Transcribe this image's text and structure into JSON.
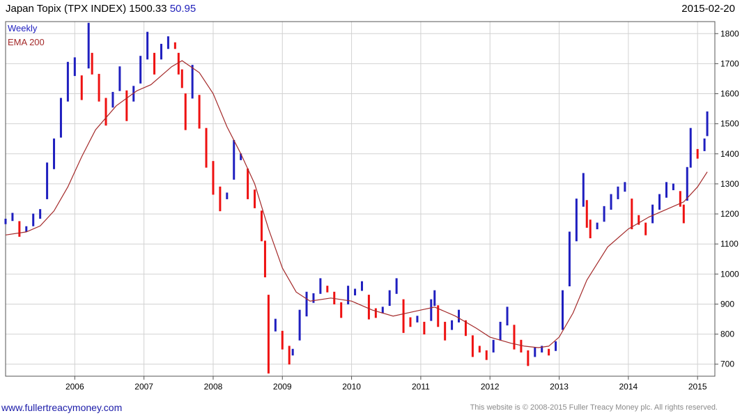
{
  "header": {
    "title": "Japan Topix (TPX INDEX) 1500.33",
    "change": "50.95",
    "date": "2015-02-20"
  },
  "footer": {
    "site": "www.fullertreacymoney.com",
    "copyright": "This website is © 2008-2015 Fuller Treacy Money plc. All rights reserved."
  },
  "chart_data": {
    "type": "line",
    "title": "Japan Topix (TPX INDEX) 1500.33",
    "xlabel": "",
    "ylabel": "",
    "ylim": [
      660,
      1840
    ],
    "xlim": [
      2005.0,
      2015.25
    ],
    "grid": true,
    "legend_placement": "top-left",
    "x_ticks": [
      "2006",
      "2007",
      "2008",
      "2009",
      "2010",
      "2011",
      "2012",
      "2013",
      "2014",
      "2015"
    ],
    "y_ticks": [
      700,
      800,
      900,
      1000,
      1100,
      1200,
      1300,
      1400,
      1500,
      1600,
      1700,
      1800
    ],
    "colors": {
      "up": "#1f1fbf",
      "down": "#ee1111",
      "ema": "#a42a2a",
      "grid": "#d2d2d2"
    },
    "series": [
      {
        "name": "Weekly",
        "style": "weekly range bars, blue up / red down",
        "x": [
          2005.0,
          2005.1,
          2005.2,
          2005.3,
          2005.4,
          2005.5,
          2005.6,
          2005.7,
          2005.8,
          2005.9,
          2006.0,
          2006.1,
          2006.2,
          2006.25,
          2006.35,
          2006.45,
          2006.55,
          2006.65,
          2006.75,
          2006.85,
          2006.95,
          2007.05,
          2007.15,
          2007.25,
          2007.35,
          2007.45,
          2007.5,
          2007.55,
          2007.6,
          2007.7,
          2007.8,
          2007.9,
          2008.0,
          2008.1,
          2008.2,
          2008.3,
          2008.4,
          2008.5,
          2008.6,
          2008.7,
          2008.75,
          2008.8,
          2008.9,
          2009.0,
          2009.1,
          2009.15,
          2009.25,
          2009.35,
          2009.45,
          2009.55,
          2009.65,
          2009.75,
          2009.85,
          2009.95,
          2010.05,
          2010.15,
          2010.25,
          2010.35,
          2010.45,
          2010.55,
          2010.65,
          2010.75,
          2010.85,
          2010.95,
          2011.05,
          2011.15,
          2011.2,
          2011.25,
          2011.35,
          2011.45,
          2011.55,
          2011.65,
          2011.75,
          2011.85,
          2011.95,
          2012.05,
          2012.15,
          2012.25,
          2012.35,
          2012.45,
          2012.55,
          2012.65,
          2012.75,
          2012.85,
          2012.95,
          2013.05,
          2013.15,
          2013.25,
          2013.35,
          2013.4,
          2013.45,
          2013.55,
          2013.65,
          2013.75,
          2013.85,
          2013.95,
          2014.05,
          2014.15,
          2014.25,
          2014.35,
          2014.45,
          2014.55,
          2014.65,
          2014.75,
          2014.8,
          2014.85,
          2014.9,
          2015.0,
          2015.1,
          2015.14
        ],
        "values": [
          1175,
          1190,
          1150,
          1150,
          1180,
          1200,
          1310,
          1400,
          1520,
          1640,
          1690,
          1620,
          1760,
          1700,
          1620,
          1540,
          1580,
          1650,
          1560,
          1600,
          1680,
          1760,
          1700,
          1740,
          1770,
          1760,
          1700,
          1650,
          1540,
          1640,
          1540,
          1420,
          1320,
          1250,
          1260,
          1380,
          1390,
          1300,
          1250,
          1160,
          1050,
          800,
          830,
          780,
          730,
          740,
          830,
          900,
          920,
          960,
          950,
          920,
          880,
          930,
          940,
          960,
          890,
          870,
          880,
          920,
          960,
          860,
          840,
          850,
          820,
          880,
          920,
          860,
          810,
          830,
          860,
          820,
          760,
          750,
          730,
          760,
          810,
          860,
          790,
          760,
          720,
          740,
          750,
          740,
          760,
          880,
          1050,
          1180,
          1280,
          1200,
          1150,
          1160,
          1200,
          1240,
          1270,
          1290,
          1200,
          1180,
          1150,
          1200,
          1240,
          1280,
          1290,
          1250,
          1200,
          1300,
          1420,
          1400,
          1430,
          1500
        ]
      },
      {
        "name": "EMA 200",
        "x": [
          2005.0,
          2005.3,
          2005.5,
          2005.7,
          2005.9,
          2006.1,
          2006.3,
          2006.6,
          2006.9,
          2007.1,
          2007.4,
          2007.55,
          2007.8,
          2008.0,
          2008.2,
          2008.4,
          2008.6,
          2008.8,
          2009.0,
          2009.2,
          2009.4,
          2009.7,
          2010.0,
          2010.3,
          2010.6,
          2011.0,
          2011.2,
          2011.5,
          2011.8,
          2012.0,
          2012.3,
          2012.5,
          2012.7,
          2012.85,
          2013.0,
          2013.2,
          2013.4,
          2013.7,
          2014.0,
          2014.3,
          2014.6,
          2014.8,
          2015.0,
          2015.14
        ],
        "values": [
          1130,
          1140,
          1160,
          1210,
          1290,
          1390,
          1480,
          1560,
          1610,
          1630,
          1690,
          1710,
          1670,
          1600,
          1490,
          1400,
          1300,
          1150,
          1020,
          940,
          910,
          920,
          910,
          880,
          860,
          880,
          890,
          860,
          820,
          790,
          770,
          760,
          755,
          760,
          790,
          870,
          980,
          1090,
          1150,
          1190,
          1220,
          1240,
          1290,
          1340
        ]
      }
    ]
  }
}
